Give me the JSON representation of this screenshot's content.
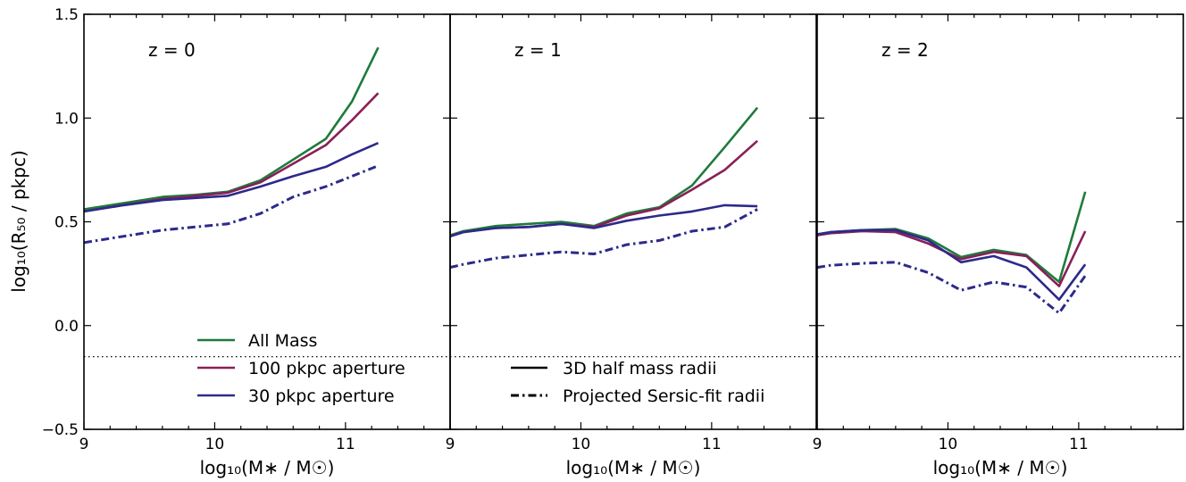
{
  "chart_data": {
    "type": "line",
    "ylabel": "log₁₀(R₅₀ / pkpc)",
    "xlabel": "log₁₀(M∗ / M☉)",
    "ylim": [
      -0.5,
      1.5
    ],
    "xlim": [
      9,
      11.8
    ],
    "x_ticks": [
      "9",
      "10",
      "11"
    ],
    "y_ticks": [
      "−0.5",
      "0.0",
      "0.5",
      "1.0",
      "1.5"
    ],
    "reference_line_y": -0.15,
    "colors": {
      "all_mass": "#1f7a3c",
      "aperture_100": "#8a1f58",
      "aperture_30": "#2c2a8a"
    },
    "legend": {
      "color": [
        {
          "label": "All Mass",
          "key": "all_mass"
        },
        {
          "label": "100 pkpc aperture",
          "key": "aperture_100"
        },
        {
          "label": "30 pkpc aperture",
          "key": "aperture_30"
        }
      ],
      "style": [
        {
          "label": "3D half mass radii",
          "style": "solid"
        },
        {
          "label": "Projected Sersic-fit radii",
          "style": "dashdot"
        }
      ]
    },
    "panels": [
      {
        "label": "z = 0",
        "series": [
          {
            "key": "all_mass",
            "style": "solid",
            "x": [
              9.0,
              9.3,
              9.6,
              9.85,
              10.1,
              10.35,
              10.6,
              10.85,
              11.05,
              11.25
            ],
            "y": [
              0.56,
              0.59,
              0.62,
              0.63,
              0.645,
              0.7,
              0.8,
              0.9,
              1.08,
              1.34
            ]
          },
          {
            "key": "aperture_100",
            "style": "solid",
            "x": [
              9.0,
              9.3,
              9.6,
              9.85,
              10.1,
              10.35,
              10.6,
              10.85,
              11.05,
              11.25
            ],
            "y": [
              0.55,
              0.58,
              0.61,
              0.625,
              0.64,
              0.69,
              0.78,
              0.87,
              0.99,
              1.12
            ]
          },
          {
            "key": "aperture_30",
            "style": "solid",
            "x": [
              9.0,
              9.3,
              9.6,
              9.85,
              10.1,
              10.35,
              10.6,
              10.85,
              11.05,
              11.25
            ],
            "y": [
              0.55,
              0.58,
              0.605,
              0.615,
              0.625,
              0.67,
              0.72,
              0.765,
              0.825,
              0.88
            ]
          },
          {
            "key": "aperture_30",
            "style": "dashdot",
            "x": [
              9.0,
              9.3,
              9.6,
              9.85,
              10.1,
              10.35,
              10.6,
              10.85,
              11.05,
              11.25
            ],
            "y": [
              0.4,
              0.43,
              0.46,
              0.475,
              0.49,
              0.54,
              0.62,
              0.67,
              0.72,
              0.77
            ]
          }
        ]
      },
      {
        "label": "z = 1",
        "series": [
          {
            "key": "all_mass",
            "style": "solid",
            "x": [
              9.0,
              9.1,
              9.35,
              9.6,
              9.85,
              10.1,
              10.35,
              10.6,
              10.85,
              11.1,
              11.35
            ],
            "y": [
              0.435,
              0.455,
              0.48,
              0.49,
              0.5,
              0.48,
              0.54,
              0.57,
              0.675,
              0.86,
              1.05
            ]
          },
          {
            "key": "aperture_100",
            "style": "solid",
            "x": [
              9.0,
              9.1,
              9.35,
              9.6,
              9.85,
              10.1,
              10.35,
              10.6,
              10.85,
              11.1,
              11.35
            ],
            "y": [
              0.43,
              0.45,
              0.47,
              0.475,
              0.49,
              0.475,
              0.53,
              0.565,
              0.655,
              0.75,
              0.89
            ]
          },
          {
            "key": "aperture_30",
            "style": "solid",
            "x": [
              9.0,
              9.1,
              9.35,
              9.6,
              9.85,
              10.1,
              10.35,
              10.6,
              10.85,
              11.1,
              11.35
            ],
            "y": [
              0.43,
              0.45,
              0.47,
              0.475,
              0.49,
              0.47,
              0.505,
              0.53,
              0.55,
              0.58,
              0.575
            ]
          },
          {
            "key": "aperture_30",
            "style": "dashdot",
            "x": [
              9.0,
              9.1,
              9.35,
              9.6,
              9.85,
              10.1,
              10.35,
              10.6,
              10.85,
              11.1,
              11.35
            ],
            "y": [
              0.28,
              0.295,
              0.325,
              0.34,
              0.355,
              0.345,
              0.39,
              0.41,
              0.455,
              0.475,
              0.56
            ]
          }
        ]
      },
      {
        "label": "z = 2",
        "series": [
          {
            "key": "all_mass",
            "style": "solid",
            "x": [
              9.0,
              9.1,
              9.35,
              9.6,
              9.85,
              10.1,
              10.35,
              10.6,
              10.85,
              11.05
            ],
            "y": [
              0.44,
              0.45,
              0.46,
              0.465,
              0.42,
              0.33,
              0.365,
              0.34,
              0.21,
              0.645
            ]
          },
          {
            "key": "aperture_100",
            "style": "solid",
            "x": [
              9.0,
              9.1,
              9.35,
              9.6,
              9.85,
              10.1,
              10.35,
              10.6,
              10.85,
              11.05
            ],
            "y": [
              0.435,
              0.445,
              0.455,
              0.45,
              0.395,
              0.32,
              0.355,
              0.335,
              0.19,
              0.455
            ]
          },
          {
            "key": "aperture_30",
            "style": "solid",
            "x": [
              9.0,
              9.1,
              9.35,
              9.6,
              9.85,
              10.1,
              10.35,
              10.6,
              10.85,
              11.05
            ],
            "y": [
              0.44,
              0.45,
              0.46,
              0.46,
              0.41,
              0.305,
              0.335,
              0.28,
              0.125,
              0.295
            ]
          },
          {
            "key": "aperture_30",
            "style": "dashdot",
            "x": [
              9.0,
              9.1,
              9.35,
              9.6,
              9.85,
              10.1,
              10.35,
              10.6,
              10.85,
              11.05
            ],
            "y": [
              0.28,
              0.29,
              0.3,
              0.305,
              0.255,
              0.17,
              0.21,
              0.185,
              0.06,
              0.24
            ]
          }
        ]
      }
    ]
  }
}
